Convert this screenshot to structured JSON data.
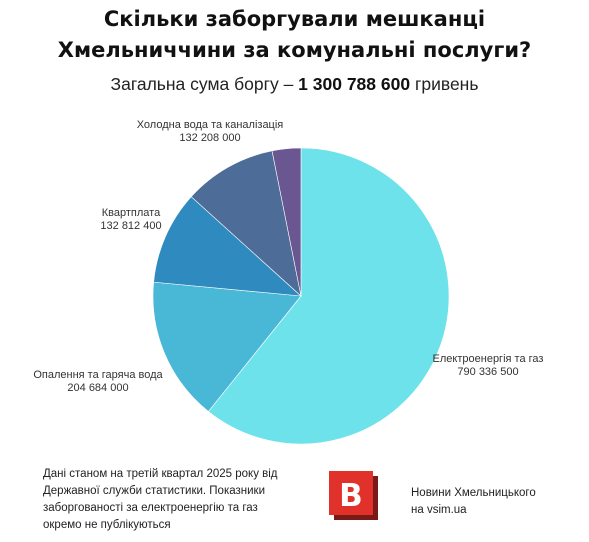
{
  "header": {
    "title_line1": "Скільки заборгували мешканці",
    "title_line2": "Хмельниччини за комунальні послуги?",
    "subtitle_prefix": "Загальна сума боргу – ",
    "subtitle_amount": "1 300 788 600",
    "subtitle_suffix": " гривень"
  },
  "chart_data": {
    "type": "pie",
    "title": "Скільки заборгували мешканці Хмельниччини за комунальні послуги?",
    "subtitle": "Загальна сума боргу – 1 300 788 600 гривень",
    "slices": [
      {
        "label": "Електроенергія та газ",
        "value": 790336500,
        "value_label": "790 336 500",
        "color": "#6de2ea"
      },
      {
        "label": "Опалення та гаряча вода",
        "value": 204684000,
        "value_label": "204 684 000",
        "color": "#49b7d6"
      },
      {
        "label": "Квартплата",
        "value": 132812400,
        "value_label": "132 812 400",
        "color": "#2f8bbf"
      },
      {
        "label": "Холодна вода та каналізація",
        "value": 132208000,
        "value_label": "132 208 000",
        "color": "#4e6c98"
      },
      {
        "label": "",
        "value": 40748000,
        "value_label": "",
        "color": "#6a5690"
      }
    ]
  },
  "footer": {
    "note_line1": "Дані станом на третій квартал 2025 року від",
    "note_line2": "Державної служби статистики. Показники",
    "note_line3": "заборгованості за електроенергію та газ",
    "note_line4": "окремо не публікуються",
    "brand_line1": "Новини Хмельницького",
    "brand_line2": "на vsim.ua",
    "logo_letter": "В",
    "logo_color": "#e0322b",
    "logo_shadow": "#7a1a16"
  }
}
